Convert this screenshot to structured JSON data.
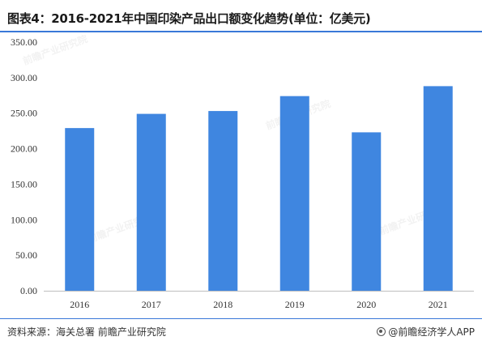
{
  "header": {
    "title": "图表4：2016-2021年中国印染产品出口额变化趋势(单位：亿美元)"
  },
  "footer": {
    "source": "资料来源：海关总署 前瞻产业研究院",
    "brand": "@前瞻经济学人APP"
  },
  "watermark": {
    "text": "前瞻产业研究院"
  },
  "colors": {
    "bar": "#3f86e0",
    "accent_rule": "#3a78d8",
    "axis": "#bfbfbf"
  },
  "chart_data": {
    "type": "bar",
    "title": "图表4：2016-2021年中国印染产品出口额变化趋势(单位：亿美元)",
    "categories": [
      "2016",
      "2017",
      "2018",
      "2019",
      "2020",
      "2021"
    ],
    "values": [
      229,
      249,
      253,
      274,
      223,
      288
    ],
    "ylim": [
      0,
      350
    ],
    "yticks": [
      "0.00",
      "50.00",
      "100.00",
      "150.00",
      "200.00",
      "250.00",
      "300.00",
      "350.00"
    ],
    "grid": false,
    "legend": "none"
  }
}
